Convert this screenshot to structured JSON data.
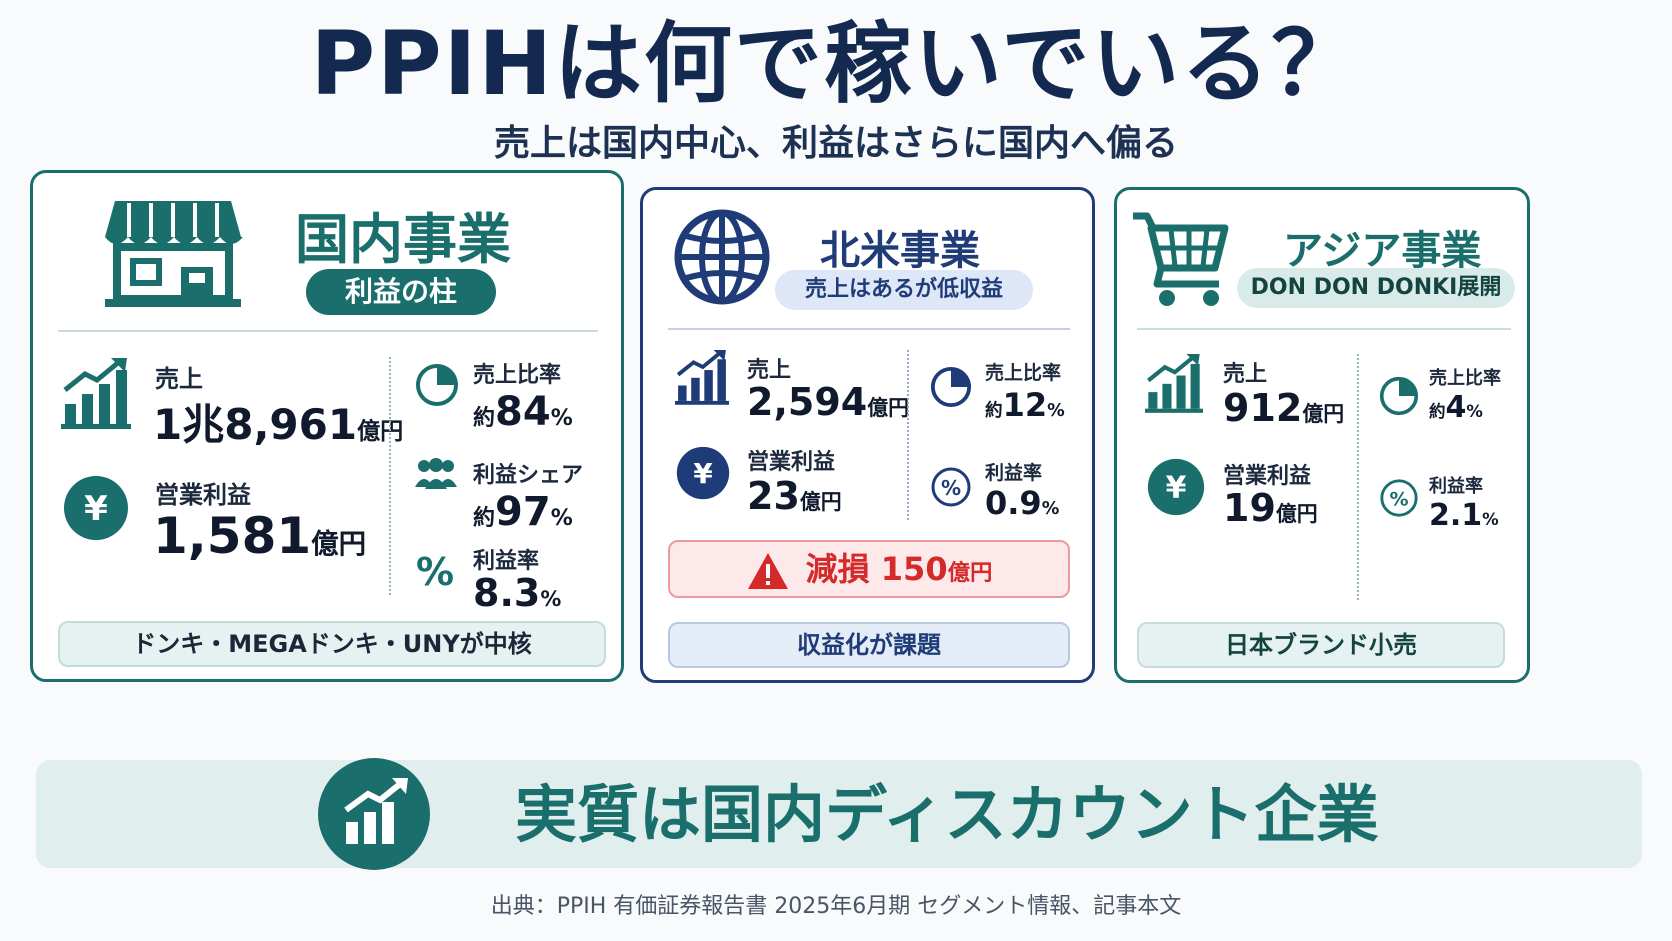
{
  "header": {
    "title": "PPIHは何で稼いでいる？",
    "subtitle": "売上は国内中心、利益はさらに国内へ偏る"
  },
  "domestic": {
    "title": "国内事業",
    "badge": "利益の柱",
    "sales_label": "売上",
    "sales_value": "1兆8,961",
    "sales_unit": "億円",
    "op_label": "営業利益",
    "op_value": "1,581",
    "op_unit": "億円",
    "share_label": "売上比率",
    "share_prefix": "約",
    "share_value": "84",
    "share_unit": "%",
    "profit_share_label": "利益シェア",
    "profit_share_prefix": "約",
    "profit_share_value": "97",
    "profit_share_unit": "%",
    "margin_label": "利益率",
    "margin_value": "8.3",
    "margin_unit": "%",
    "note": "ドンキ・MEGAドンキ・UNYが中核",
    "icons": [
      "store-icon",
      "chart-up-icon",
      "yen-icon",
      "pie-icon",
      "people-icon",
      "percent-icon"
    ]
  },
  "north_america": {
    "title": "北米事業",
    "badge": "売上はあるが低収益",
    "sales_label": "売上",
    "sales_value": "2,594",
    "sales_unit": "億円",
    "op_label": "営業利益",
    "op_value": "23",
    "op_unit": "億円",
    "share_label": "売上比率",
    "share_prefix": "約",
    "share_value": "12",
    "share_unit": "%",
    "margin_label": "利益率",
    "margin_value": "0.9",
    "margin_unit": "%",
    "alert_label": "減損",
    "alert_value": "150",
    "alert_unit": "億円",
    "note": "収益化が課題",
    "icons": [
      "globe-icon",
      "chart-up-icon",
      "yen-icon",
      "pie-icon",
      "percent-icon",
      "warning-icon"
    ]
  },
  "asia": {
    "title": "アジア事業",
    "badge": "DON DON DONKI展開",
    "sales_label": "売上",
    "sales_value": "912",
    "sales_unit": "億円",
    "op_label": "営業利益",
    "op_value": "19",
    "op_unit": "億円",
    "share_label": "売上比率",
    "share_prefix": "約",
    "share_value": "4",
    "share_unit": "%",
    "margin_label": "利益率",
    "margin_value": "2.1",
    "margin_unit": "%",
    "note": "日本ブランド小売",
    "icons": [
      "cart-icon",
      "chart-up-icon",
      "yen-icon",
      "pie-icon",
      "percent-icon"
    ]
  },
  "conclusion": {
    "text": "実質は国内ディスカウント企業"
  },
  "footer": {
    "source": "出典：PPIH 有価証券報告書 2025年6月期 セグメント情報、記事本文"
  },
  "colors": {
    "teal": "#1a6e6b",
    "navy": "#1f3c78",
    "alert_red": "#d42a2a",
    "title_navy": "#14294f"
  }
}
